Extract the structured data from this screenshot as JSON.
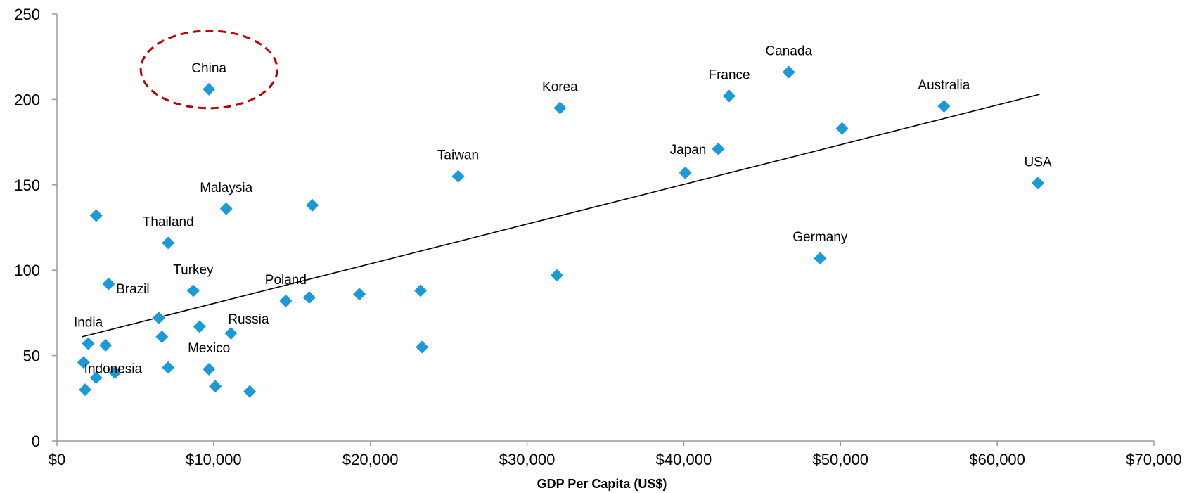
{
  "chart_data": {
    "type": "scatter",
    "title": "",
    "xlabel": "GDP Per Capita (US$)",
    "ylabel": "",
    "xlim": [
      0,
      70000
    ],
    "ylim": [
      0,
      250
    ],
    "x_ticks": [
      0,
      10000,
      20000,
      30000,
      40000,
      50000,
      60000,
      70000
    ],
    "x_tick_labels": [
      "$0",
      "$10,000",
      "$20,000",
      "$30,000",
      "$40,000",
      "$50,000",
      "$60,000",
      "$70,000"
    ],
    "y_ticks": [
      0,
      50,
      100,
      150,
      200,
      250
    ],
    "y_tick_labels": [
      "0",
      "50",
      "100",
      "150",
      "200",
      "250"
    ],
    "grid": false,
    "marker": "diamond",
    "marker_color": "#1a9ad9",
    "trendline": {
      "type": "linear",
      "color": "#000000",
      "from": [
        1600,
        61
      ],
      "to": [
        62700,
        203
      ]
    },
    "highlight": {
      "label": "China",
      "shape": "dashed-ellipse",
      "color": "#c00000"
    },
    "points": [
      {
        "x": 9700,
        "y": 206,
        "label": "China"
      },
      {
        "x": 32100,
        "y": 195,
        "label": "Korea"
      },
      {
        "x": 42900,
        "y": 202,
        "label": "France"
      },
      {
        "x": 46700,
        "y": 216,
        "label": "Canada"
      },
      {
        "x": 56600,
        "y": 196,
        "label": "Australia"
      },
      {
        "x": 50100,
        "y": 183,
        "label": ""
      },
      {
        "x": 42200,
        "y": 171,
        "label": "Japan"
      },
      {
        "x": 40100,
        "y": 157,
        "label": ""
      },
      {
        "x": 25600,
        "y": 155,
        "label": "Taiwan"
      },
      {
        "x": 62600,
        "y": 151,
        "label": "USA"
      },
      {
        "x": 48700,
        "y": 107,
        "label": "Germany"
      },
      {
        "x": 10800,
        "y": 136,
        "label": "Malaysia"
      },
      {
        "x": 16300,
        "y": 138,
        "label": ""
      },
      {
        "x": 2500,
        "y": 132,
        "label": ""
      },
      {
        "x": 7100,
        "y": 116,
        "label": "Thailand"
      },
      {
        "x": 3300,
        "y": 92,
        "label": ""
      },
      {
        "x": 8700,
        "y": 88,
        "label": "Turkey"
      },
      {
        "x": 6500,
        "y": 72,
        "label": "Brazil"
      },
      {
        "x": 14600,
        "y": 82,
        "label": "Poland"
      },
      {
        "x": 16100,
        "y": 84,
        "label": ""
      },
      {
        "x": 19300,
        "y": 86,
        "label": ""
      },
      {
        "x": 23200,
        "y": 88,
        "label": ""
      },
      {
        "x": 31900,
        "y": 97,
        "label": ""
      },
      {
        "x": 9100,
        "y": 67,
        "label": ""
      },
      {
        "x": 11100,
        "y": 63,
        "label": "Russia"
      },
      {
        "x": 6700,
        "y": 61,
        "label": ""
      },
      {
        "x": 2000,
        "y": 57,
        "label": "India"
      },
      {
        "x": 3100,
        "y": 56,
        "label": ""
      },
      {
        "x": 23300,
        "y": 55,
        "label": ""
      },
      {
        "x": 1700,
        "y": 46,
        "label": "Indonesia"
      },
      {
        "x": 7100,
        "y": 43,
        "label": ""
      },
      {
        "x": 9700,
        "y": 42,
        "label": "Mexico"
      },
      {
        "x": 3700,
        "y": 40,
        "label": ""
      },
      {
        "x": 2500,
        "y": 37,
        "label": ""
      },
      {
        "x": 10100,
        "y": 32,
        "label": ""
      },
      {
        "x": 1800,
        "y": 30,
        "label": ""
      },
      {
        "x": 12300,
        "y": 29,
        "label": ""
      }
    ]
  }
}
